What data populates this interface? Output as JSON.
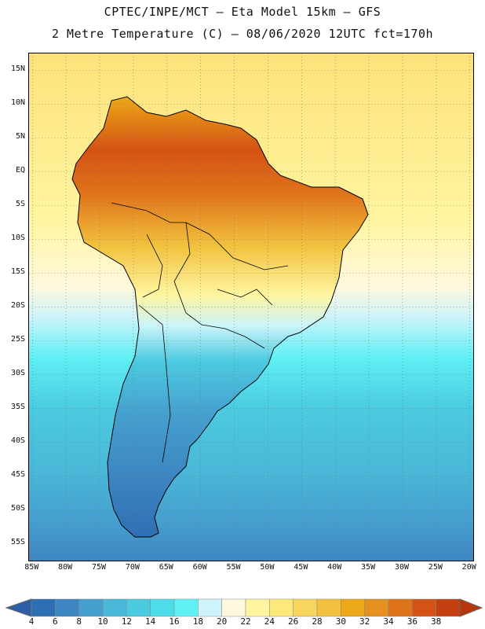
{
  "title_line1": "CPTEC/INPE/MCT –  Eta Model 15km – GFS",
  "title_line2": "2 Metre Temperature (C) – 08/06/2020 12UTC fct=170h",
  "map": {
    "lat_labels": [
      "15N",
      "10N",
      "5N",
      "EQ",
      "5S",
      "10S",
      "15S",
      "20S",
      "25S",
      "30S",
      "35S",
      "40S",
      "45S",
      "50S",
      "55S"
    ],
    "lat_values": [
      15,
      10,
      5,
      0,
      -5,
      -10,
      -15,
      -20,
      -25,
      -30,
      -35,
      -40,
      -45,
      -50,
      -55
    ],
    "lon_labels": [
      "85W",
      "80W",
      "75W",
      "70W",
      "65W",
      "60W",
      "55W",
      "50W",
      "45W",
      "40W",
      "35W",
      "30W",
      "25W",
      "20W"
    ],
    "lon_values": [
      -85,
      -80,
      -75,
      -70,
      -65,
      -60,
      -55,
      -50,
      -45,
      -40,
      -35,
      -30,
      -25,
      -20
    ],
    "lon_range": [
      -85.5,
      -19.5
    ],
    "lat_range": [
      -57.5,
      17.5
    ],
    "grid_lines": "dotted"
  },
  "colorbar": {
    "labels": [
      "4",
      "6",
      "8",
      "10",
      "12",
      "14",
      "16",
      "18",
      "20",
      "22",
      "24",
      "26",
      "28",
      "30",
      "32",
      "34",
      "36",
      "38"
    ],
    "colors": [
      "#2e6fb3",
      "#3d86c2",
      "#46a0cf",
      "#4ab8d8",
      "#4bcbe0",
      "#4ddde8",
      "#5ff0f5",
      "#ccf4fa",
      "#fff8de",
      "#fff5a0",
      "#fde87a",
      "#f8d55c",
      "#f2c23e",
      "#eca816",
      "#e6901e",
      "#df731a",
      "#d45314",
      "#c43f10"
    ],
    "low_color": "#2a5fa5",
    "high_color": "#b8360c"
  }
}
